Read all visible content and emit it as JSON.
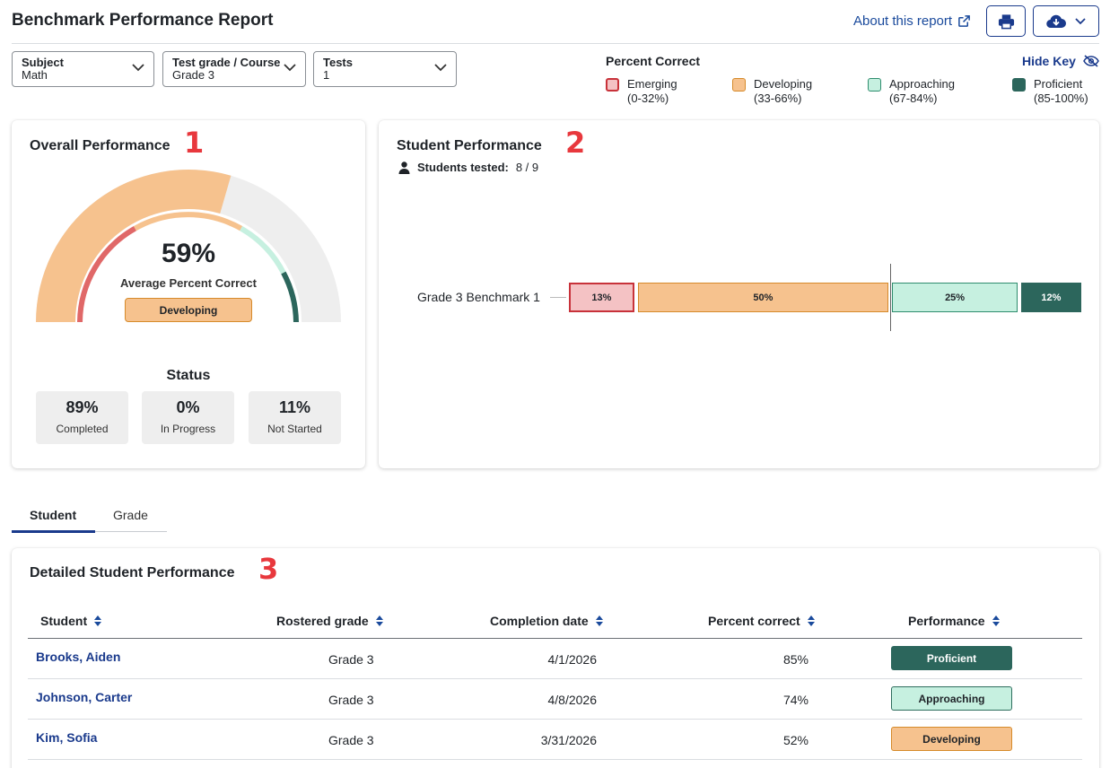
{
  "header": {
    "title": "Benchmark Performance Report",
    "about_link": "About this report"
  },
  "filters": [
    {
      "label": "Subject",
      "value": "Math"
    },
    {
      "label": "Test grade / Course",
      "value": "Grade 3"
    },
    {
      "label": "Tests",
      "value": "1"
    }
  ],
  "key": {
    "title": "Percent Correct",
    "hide_label": "Hide Key",
    "items": [
      {
        "name": "Emerging",
        "range": "(0-32%)",
        "color": "#f4c2c4",
        "border": "#c8323a"
      },
      {
        "name": "Developing",
        "range": "(33-66%)",
        "color": "#f6c28e",
        "border": "#d68a2a"
      },
      {
        "name": "Approaching",
        "range": "(67-84%)",
        "color": "#c6f0e0",
        "border": "#2f8d6e"
      },
      {
        "name": "Proficient",
        "range": "(85-100%)",
        "color": "#2c665c",
        "border": "#2c665c"
      }
    ]
  },
  "overall": {
    "title": "Overall Performance",
    "number_mark": "1",
    "percent": "59%",
    "percent_value": 59,
    "subtitle": "Average Percent Correct",
    "badge": "Developing",
    "status_title": "Status",
    "status": [
      {
        "value": "89%",
        "label": "Completed"
      },
      {
        "value": "0%",
        "label": "In Progress"
      },
      {
        "value": "11%",
        "label": "Not Started"
      }
    ]
  },
  "student_perf": {
    "title": "Student Performance",
    "number_mark": "2",
    "tested_label": "Students tested:",
    "tested_value": "8 / 9",
    "row_label": "Grade 3 Benchmark 1",
    "average_percent": 59,
    "segments": [
      {
        "level": "Emerging",
        "value": 13,
        "label": "13%"
      },
      {
        "level": "Developing",
        "value": 50,
        "label": "50%"
      },
      {
        "level": "Approaching",
        "value": 25,
        "label": "25%"
      },
      {
        "level": "Proficient",
        "value": 12,
        "label": "12%"
      }
    ]
  },
  "tabs": [
    {
      "label": "Student",
      "active": true
    },
    {
      "label": "Grade",
      "active": false
    }
  ],
  "detail": {
    "title": "Detailed Student Performance",
    "number_mark": "3",
    "columns": [
      "Student",
      "Rostered grade",
      "Completion date",
      "Percent correct",
      "Performance"
    ],
    "rows": [
      {
        "student": "Brooks, Aiden",
        "grade": "Grade 3",
        "date": "4/1/2026",
        "percent": "85%",
        "performance": "Proficient"
      },
      {
        "student": "Johnson, Carter",
        "grade": "Grade 3",
        "date": "4/8/2026",
        "percent": "74%",
        "performance": "Approaching"
      },
      {
        "student": "Kim, Sofia",
        "grade": "Grade 3",
        "date": "3/31/2026",
        "percent": "52%",
        "performance": "Developing"
      }
    ]
  }
}
